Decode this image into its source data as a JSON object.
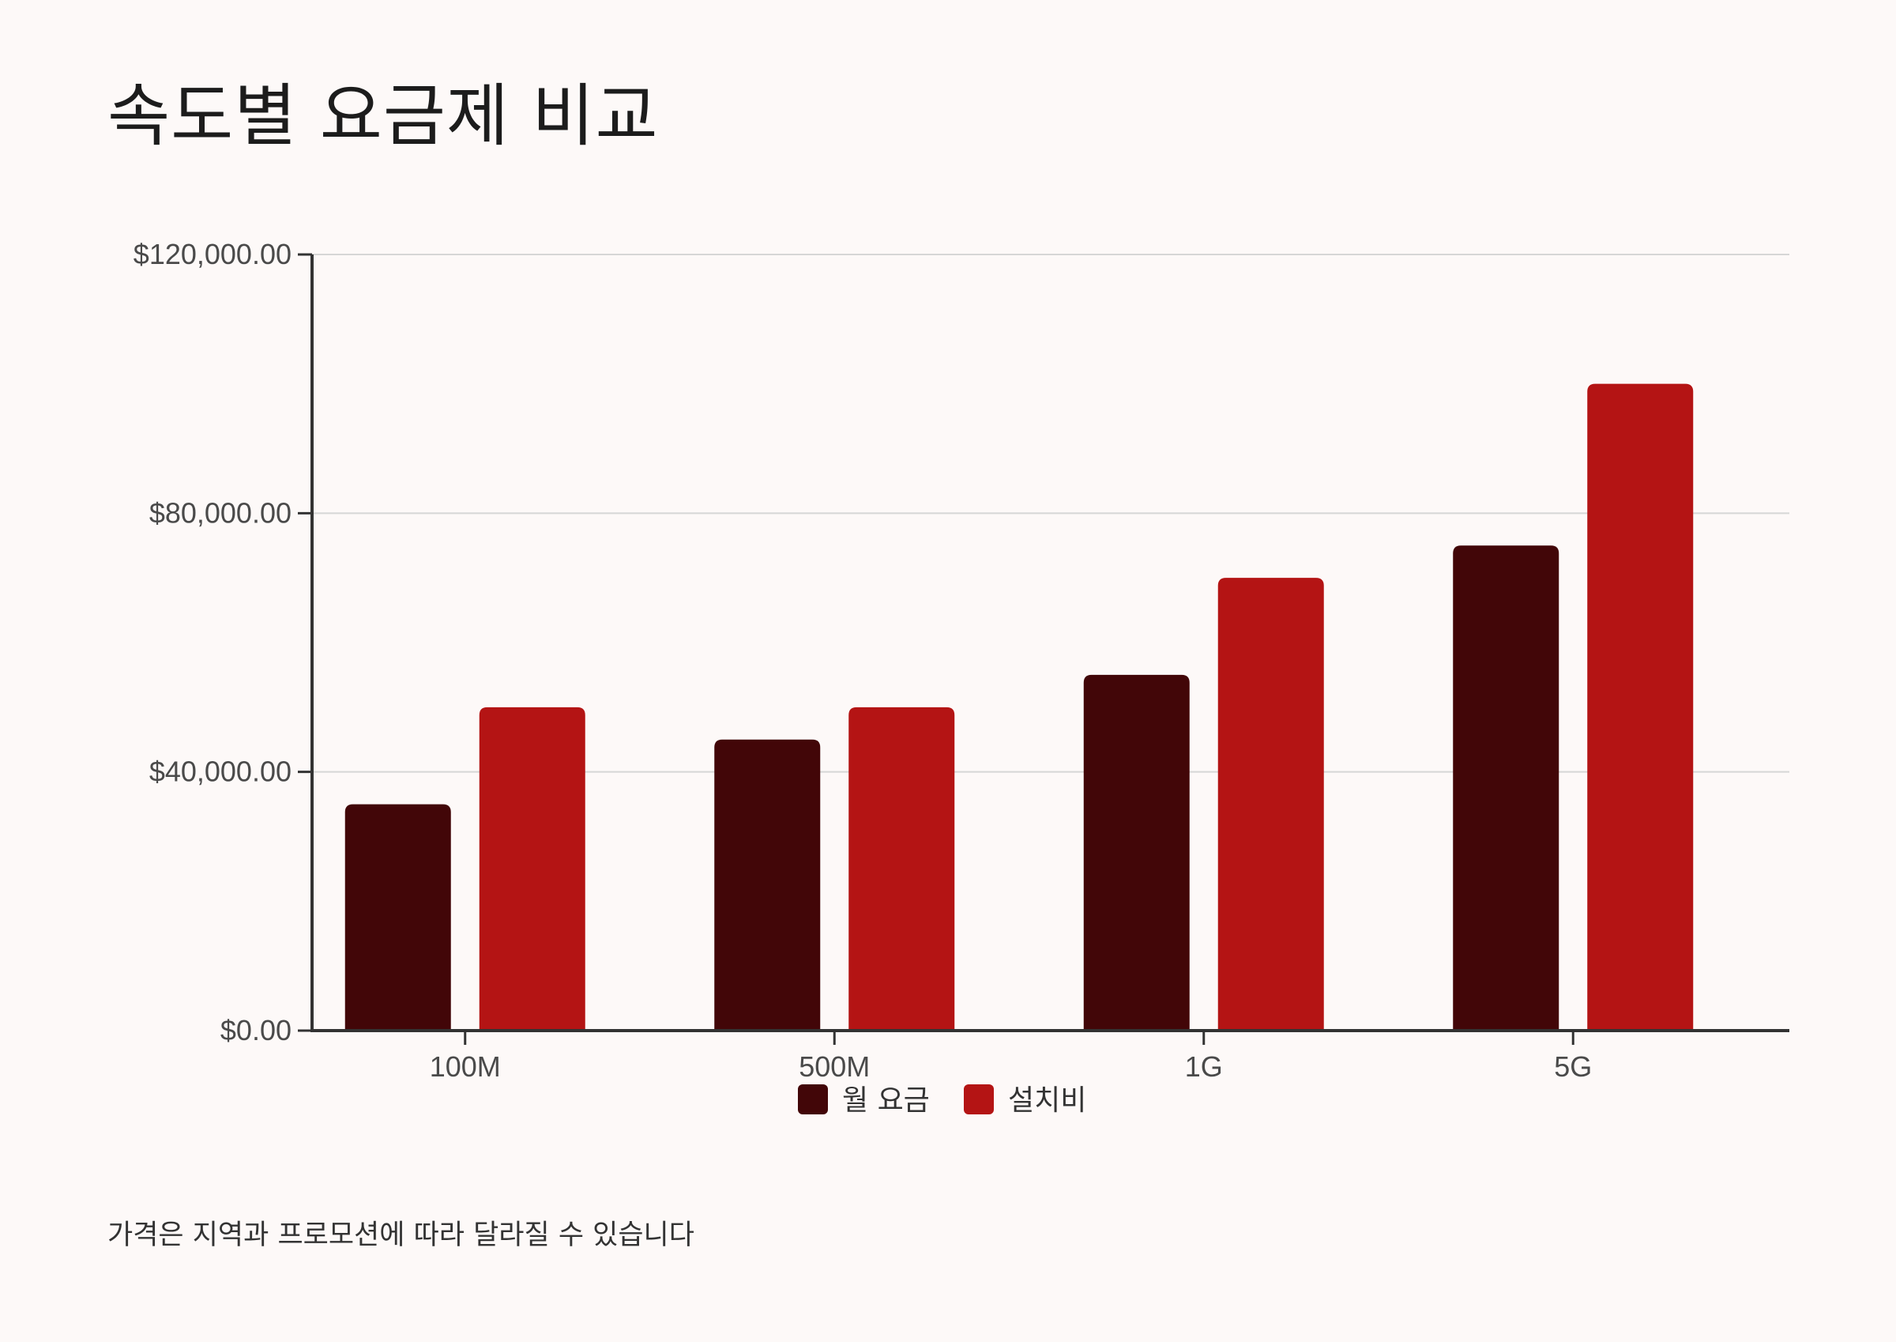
{
  "title": "속도별 요금제 비교",
  "footnote": "가격은 지역과 프로모션에 따라 달라질 수 있습니다",
  "colors": {
    "monthly": "#420608",
    "install": "#b41414",
    "axis": "#333333",
    "grid": "#d6d6d6"
  },
  "chart_data": {
    "type": "bar",
    "categories": [
      "100M",
      "500M",
      "1G",
      "5G"
    ],
    "series": [
      {
        "name": "월 요금",
        "values": [
          35000,
          45000,
          55000,
          75000
        ]
      },
      {
        "name": "설치비",
        "values": [
          50000,
          50000,
          70000,
          100000
        ]
      }
    ],
    "ylim": [
      0,
      120000
    ],
    "yticks": [
      0,
      40000,
      80000,
      120000
    ],
    "ytick_labels": [
      "$0.00",
      "$40,000.00",
      "$80,000.00",
      "$120,000.00"
    ],
    "grid": true,
    "legend": "bottom-center"
  }
}
